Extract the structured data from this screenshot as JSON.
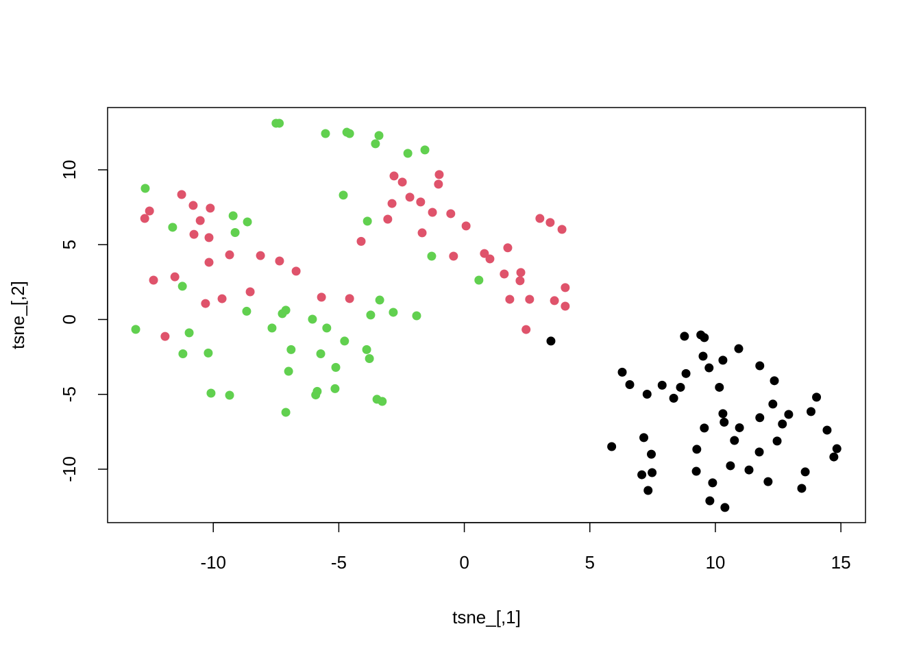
{
  "chart_data": {
    "type": "scatter",
    "x_label": "tsne_[,1]",
    "y_label": "tsne_[,2]",
    "xlim": [
      -14.21,
      15.98
    ],
    "ylim": [
      -13.57,
      14.16
    ],
    "xticks": [
      -10,
      -5,
      0,
      5,
      10,
      15
    ],
    "yticks": [
      -10,
      -5,
      0,
      5,
      10
    ],
    "series": [
      {
        "color": "#000000",
        "x": [
          3.45,
          6.29,
          6.59,
          7.28,
          7.88,
          8.34,
          8.61,
          8.83,
          8.77,
          9.42,
          9.56,
          9.51,
          9.75,
          10.3,
          10.16,
          10.93,
          11.77,
          12.35,
          10.3,
          10.35,
          10.96,
          10.76,
          11.77,
          12.29,
          12.67,
          12.92,
          12.46,
          11.75,
          11.34,
          12.1,
          10.6,
          9.89,
          9.78,
          10.38,
          9.24,
          9.26,
          9.56,
          5.87,
          7.15,
          7.45,
          7.07,
          7.48,
          7.32,
          13.44,
          13.58,
          14.03,
          13.81,
          14.45,
          14.72,
          14.84
        ],
        "y": [
          -1.44,
          -3.52,
          -4.35,
          -4.99,
          -4.39,
          -5.26,
          -4.53,
          -3.61,
          -1.12,
          -1.03,
          -1.21,
          -2.45,
          -3.23,
          -2.72,
          -4.53,
          -1.95,
          -3.09,
          -4.09,
          -6.29,
          -6.86,
          -7.23,
          -8.08,
          -6.56,
          -5.65,
          -6.98,
          -6.34,
          -8.12,
          -8.85,
          -10.05,
          -10.83,
          -9.77,
          -10.91,
          -12.11,
          -12.56,
          -10.14,
          -8.67,
          -7.25,
          -8.49,
          -7.89,
          -9.0,
          -10.37,
          -10.23,
          -11.42,
          -11.28,
          -10.18,
          -5.19,
          -6.15,
          -7.39,
          -9.18,
          -8.63
        ]
      },
      {
        "color": "#DF536B",
        "x": [
          -12.73,
          -12.54,
          -11.26,
          -10.8,
          -10.52,
          -10.12,
          -10.77,
          -10.17,
          -10.17,
          -9.35,
          -8.12,
          -7.36,
          -6.7,
          -12.38,
          -11.53,
          -10.31,
          -9.65,
          -8.53,
          -11.92,
          -5.69,
          -4.57,
          -4.11,
          -3.05,
          -2.88,
          -2.8,
          -2.47,
          -2.17,
          -1.74,
          -1.68,
          -1.27,
          -1.0,
          -1.03,
          -0.54,
          0.07,
          -0.43,
          0.8,
          1.02,
          1.73,
          1.59,
          2.22,
          2.25,
          1.81,
          2.6,
          2.46,
          3.01,
          3.42,
          3.89,
          3.59,
          4.02,
          4.02
        ],
        "y": [
          6.75,
          7.25,
          8.35,
          7.62,
          6.61,
          7.44,
          5.69,
          5.47,
          3.82,
          4.32,
          4.27,
          3.91,
          3.23,
          2.63,
          2.85,
          1.07,
          1.39,
          1.85,
          -1.13,
          1.49,
          1.4,
          5.22,
          6.7,
          7.75,
          9.59,
          9.18,
          8.17,
          7.85,
          5.79,
          7.16,
          9.68,
          9.04,
          7.07,
          6.25,
          4.23,
          4.41,
          4.05,
          4.79,
          3.04,
          2.59,
          3.14,
          1.35,
          1.35,
          -0.67,
          6.75,
          6.48,
          6.02,
          1.26,
          2.13,
          0.89
        ]
      },
      {
        "color": "#61D04F",
        "x": [
          -7.5,
          -7.37,
          -5.53,
          -4.68,
          -4.57,
          -3.4,
          -3.54,
          -2.25,
          -1.57,
          -12.71,
          -4.82,
          -11.62,
          -9.21,
          -8.64,
          -9.13,
          -3.86,
          -1.3,
          0.58,
          -11.23,
          -3.37,
          -8.67,
          -7.11,
          -7.25,
          -3.73,
          -2.83,
          -1.9,
          -13.09,
          -10.96,
          -6.05,
          -7.66,
          -5.48,
          -4.77,
          -11.21,
          -10.2,
          -6.9,
          -5.72,
          -3.89,
          -3.78,
          -7.0,
          -5.12,
          -10.09,
          -9.35,
          -5.86,
          -5.92,
          -5.15,
          -3.48,
          -3.27,
          -7.11
        ],
        "y": [
          13.11,
          13.11,
          12.42,
          12.51,
          12.42,
          12.29,
          11.74,
          11.1,
          11.33,
          8.76,
          8.31,
          6.16,
          6.93,
          6.52,
          5.81,
          6.57,
          4.23,
          2.63,
          2.22,
          1.3,
          0.55,
          0.62,
          0.39,
          0.3,
          0.48,
          0.25,
          -0.66,
          -0.89,
          0.02,
          -0.57,
          -0.57,
          -1.44,
          -2.29,
          -2.24,
          -2.01,
          -2.29,
          -2.01,
          -2.61,
          -3.46,
          -3.2,
          -4.92,
          -5.06,
          -4.8,
          -5.04,
          -4.62,
          -5.33,
          -5.47,
          -6.2
        ]
      }
    ]
  }
}
